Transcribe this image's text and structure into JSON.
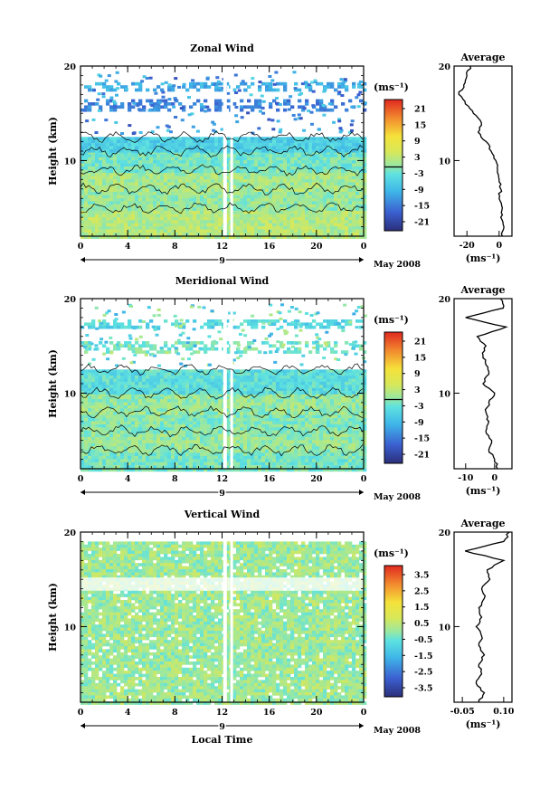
{
  "chart_data": [
    {
      "type": "heatmap",
      "title": "Zonal Wind",
      "xlabel": "",
      "ylabel": "Height (km)",
      "x_ticks": [
        "0",
        "4",
        "8",
        "12",
        "16",
        "20",
        "0"
      ],
      "y_ticks": [
        "10",
        "20"
      ],
      "xlim": [
        0,
        24
      ],
      "ylim": [
        2,
        20
      ],
      "date_marker": "9",
      "date_label": "May 2008",
      "colorbar": {
        "unit": "(ms⁻¹)",
        "ticks": [
          "21",
          "15",
          "9",
          "3",
          "-3",
          "-9",
          "-15",
          "-21"
        ],
        "range": [
          -24,
          24
        ]
      },
      "layers": [
        {
          "z0": 2,
          "z1": 5,
          "value": 2
        },
        {
          "z0": 5,
          "z1": 7,
          "value": 0
        },
        {
          "z0": 7,
          "z1": 9,
          "value": 1
        },
        {
          "z0": 9,
          "z1": 11,
          "value": -2
        },
        {
          "z0": 11,
          "z1": 12.5,
          "value": -6
        },
        {
          "z0": 15.5,
          "z1": 16.5,
          "value": -14
        },
        {
          "z0": 17.5,
          "z1": 18.3,
          "value": -10
        }
      ],
      "contour_value": 0,
      "average": {
        "title": "Average",
        "unit": "(ms⁻¹)",
        "x_ticks": [
          "-20",
          "0"
        ],
        "xlim": [
          -28,
          8
        ],
        "heights": [
          2,
          3,
          4,
          5,
          6,
          7,
          8,
          9,
          10,
          11,
          12,
          13,
          14,
          15,
          16,
          17,
          18,
          19,
          20
        ],
        "values": [
          2,
          3,
          1,
          2,
          0,
          1,
          0,
          -1,
          -2,
          -5,
          -8,
          -13,
          -11,
          -16,
          -21,
          -25,
          -22,
          -20,
          -18
        ]
      }
    },
    {
      "type": "heatmap",
      "title": "Meridional Wind",
      "xlabel": "",
      "ylabel": "Height (km)",
      "x_ticks": [
        "0",
        "4",
        "8",
        "12",
        "16",
        "20",
        "0"
      ],
      "y_ticks": [
        "10",
        "20"
      ],
      "xlim": [
        0,
        24
      ],
      "ylim": [
        2,
        20
      ],
      "date_marker": "9",
      "date_label": "May 2008",
      "colorbar": {
        "unit": "(ms⁻¹)",
        "ticks": [
          "21",
          "15",
          "9",
          "3",
          "-3",
          "-9",
          "-15",
          "-21"
        ],
        "range": [
          -24,
          24
        ]
      },
      "layers": [
        {
          "z0": 2,
          "z1": 4,
          "value": -2
        },
        {
          "z0": 4,
          "z1": 6,
          "value": 0
        },
        {
          "z0": 6,
          "z1": 8,
          "value": -1
        },
        {
          "z0": 8,
          "z1": 10,
          "value": 0
        },
        {
          "z0": 10,
          "z1": 12.5,
          "value": -4
        },
        {
          "z0": 14.5,
          "z1": 15.5,
          "value": -2
        },
        {
          "z0": 17,
          "z1": 17.8,
          "value": -5
        }
      ],
      "contour_value": 0,
      "average": {
        "title": "Average",
        "unit": "(ms⁻¹)",
        "x_ticks": [
          "-10",
          "0"
        ],
        "xlim": [
          -14,
          6
        ],
        "heights": [
          2,
          3,
          4,
          5,
          6,
          7,
          8,
          9,
          10,
          11,
          12,
          13,
          14,
          15,
          16,
          17,
          18,
          19,
          20
        ],
        "values": [
          1,
          0,
          -2,
          -1,
          -3,
          -2,
          -3,
          -2,
          0,
          -4,
          -2,
          -3,
          -4,
          -3,
          -6,
          4,
          -10,
          3,
          2
        ]
      }
    },
    {
      "type": "heatmap",
      "title": "Vertical Wind",
      "xlabel": "Local Time",
      "ylabel": "Height (km)",
      "x_ticks": [
        "0",
        "4",
        "8",
        "12",
        "16",
        "20",
        "0"
      ],
      "y_ticks": [
        "10",
        "20"
      ],
      "xlim": [
        0,
        24
      ],
      "ylim": [
        2,
        20
      ],
      "date_marker": "9",
      "date_label": "May 2008",
      "colorbar": {
        "unit": "(ms⁻¹)",
        "ticks": [
          "3.5",
          "2.5",
          "1.5",
          "0.5",
          "-0.5",
          "-1.5",
          "-2.5",
          "-3.5"
        ],
        "range": [
          -4,
          4
        ]
      },
      "layers": [
        {
          "z0": 2,
          "z1": 19,
          "value": 0.1
        }
      ],
      "contour_value": null,
      "average": {
        "title": "Average",
        "unit": "(ms⁻¹)",
        "x_ticks": [
          "-0.05",
          "0.10"
        ],
        "xlim": [
          -0.08,
          0.13
        ],
        "heights": [
          2,
          3,
          4,
          5,
          6,
          7,
          8,
          9,
          10,
          11,
          12,
          13,
          14,
          15,
          16,
          17,
          18,
          19,
          20
        ],
        "values": [
          0.01,
          0.03,
          0.0,
          0.02,
          0.01,
          0.03,
          0.01,
          0.02,
          0.0,
          0.02,
          0.01,
          0.03,
          0.02,
          0.05,
          0.04,
          0.1,
          -0.04,
          0.1,
          0.12
        ]
      }
    }
  ]
}
